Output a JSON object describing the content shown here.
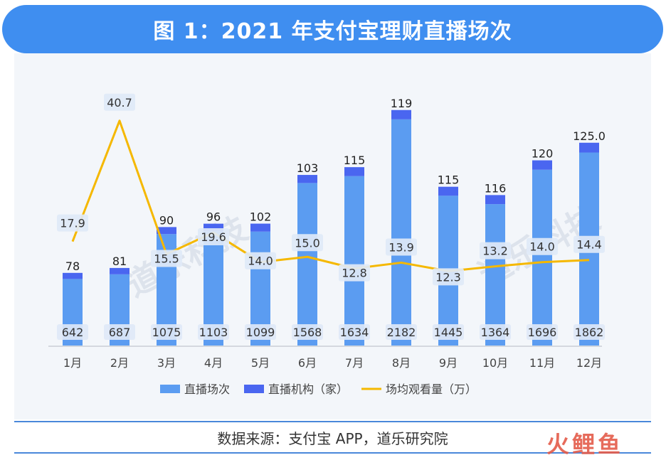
{
  "title": "图 1：2021 年支付宝理财直播场次",
  "source": "数据来源：支付宝 APP，道乐研究院",
  "watermark": "道乐科技",
  "logo_text": "火鲤鱼",
  "chart_data": {
    "type": "bar",
    "categories": [
      "1月",
      "2月",
      "3月",
      "4月",
      "5月",
      "6月",
      "7月",
      "8月",
      "9月",
      "10月",
      "11月",
      "12月"
    ],
    "series": [
      {
        "name": "直播场次",
        "kind": "bar-stack",
        "color": "#5b9cf1",
        "values": [
          642,
          687,
          1075,
          1103,
          1099,
          1568,
          1634,
          2182,
          1445,
          1364,
          1696,
          1862
        ],
        "labels": [
          "642",
          "687",
          "1075",
          "1103",
          "1099",
          "1568",
          "1634",
          "2182",
          "1445",
          "1364",
          "1696",
          "1862"
        ]
      },
      {
        "name": "直播机构（家）",
        "kind": "bar-stack",
        "color": "#4a66f0",
        "values": [
          78,
          81,
          90,
          96,
          102,
          103,
          115,
          119,
          115,
          116,
          120,
          125
        ],
        "labels": [
          "78",
          "81",
          "90",
          "96",
          "102",
          "103",
          "115",
          "119",
          "115",
          "116",
          "120",
          "125.0"
        ]
      },
      {
        "name": "场均观看量（万）",
        "kind": "line",
        "color": "#f5b800",
        "values": [
          17.9,
          40.7,
          15.5,
          19.6,
          14.0,
          15.0,
          12.8,
          13.9,
          12.3,
          13.2,
          14.0,
          14.4
        ],
        "labels": [
          "17.9",
          "40.7",
          "15.5",
          "19.6",
          "14.0",
          "15.0",
          "12.8",
          "13.9",
          "12.3",
          "13.2",
          "14.0",
          "14.4"
        ]
      }
    ],
    "legend_position": "bottom"
  }
}
